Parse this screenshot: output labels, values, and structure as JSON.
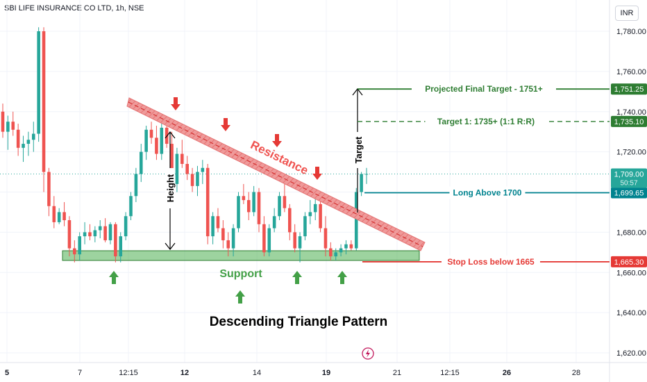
{
  "header": {
    "ticker_title": "SBI LIFE INSURANCE CO LTD, 1h, NSE",
    "currency": "INR"
  },
  "colors": {
    "up": "#26a69a",
    "down": "#ef5350",
    "support": "#4caf50",
    "resistance": "#e57373",
    "target": "#2e7d32",
    "long": "#00838f",
    "stop": "#e53935",
    "grid": "#f0f3fa",
    "axis_text": "#131722"
  },
  "chart_data": {
    "type": "candlestick",
    "y_axis": {
      "ylim": [
        1612,
        1787
      ],
      "ticks": [
        "1,620.00",
        "1,640.00",
        "1,660.00",
        "1,680.00",
        "1,700.00",
        "1,720.00",
        "1,740.00",
        "1,760.00",
        "1,780.00"
      ],
      "tick_values": [
        1620,
        1640,
        1660,
        1680,
        1700,
        1720,
        1740,
        1760,
        1780
      ]
    },
    "x_axis": {
      "ticks": [
        "5",
        "7",
        "12:15",
        "12",
        "14",
        "19",
        "21",
        "12:15",
        "26",
        "28"
      ],
      "bold_ticks": [
        "5",
        "12",
        "19",
        "26"
      ]
    },
    "candles": [
      [
        1740,
        1744,
        1727,
        1730
      ],
      [
        1730,
        1738,
        1721,
        1735
      ],
      [
        1735,
        1740,
        1728,
        1731
      ],
      [
        1731,
        1734,
        1718,
        1722
      ],
      [
        1722,
        1728,
        1715,
        1724
      ],
      [
        1724,
        1730,
        1718,
        1726
      ],
      [
        1726,
        1735,
        1720,
        1729
      ],
      [
        1729,
        1782,
        1725,
        1780
      ],
      [
        1780,
        1782,
        1700,
        1710
      ],
      [
        1710,
        1712,
        1688,
        1693
      ],
      [
        1693,
        1698,
        1682,
        1685
      ],
      [
        1685,
        1692,
        1684,
        1690
      ],
      [
        1690,
        1695,
        1683,
        1686
      ],
      [
        1686,
        1688,
        1668,
        1672
      ],
      [
        1672,
        1676,
        1665,
        1669
      ],
      [
        1669,
        1680,
        1666,
        1678
      ],
      [
        1678,
        1685,
        1674,
        1680
      ],
      [
        1680,
        1684,
        1676,
        1678
      ],
      [
        1678,
        1683,
        1675,
        1681
      ],
      [
        1681,
        1686,
        1677,
        1683
      ],
      [
        1683,
        1687,
        1675,
        1676
      ],
      [
        1676,
        1685,
        1674,
        1684
      ],
      [
        1684,
        1685,
        1665,
        1668
      ],
      [
        1668,
        1680,
        1665,
        1678
      ],
      [
        1678,
        1690,
        1676,
        1688
      ],
      [
        1688,
        1700,
        1686,
        1698
      ],
      [
        1698,
        1712,
        1695,
        1709
      ],
      [
        1709,
        1724,
        1705,
        1720
      ],
      [
        1720,
        1733,
        1716,
        1731
      ],
      [
        1731,
        1735,
        1724,
        1727
      ],
      [
        1727,
        1733,
        1716,
        1719
      ],
      [
        1719,
        1735,
        1716,
        1732
      ],
      [
        1732,
        1736,
        1722,
        1724
      ],
      [
        1724,
        1730,
        1700,
        1704
      ],
      [
        1704,
        1722,
        1700,
        1719
      ],
      [
        1719,
        1726,
        1712,
        1714
      ],
      [
        1714,
        1718,
        1706,
        1709
      ],
      [
        1709,
        1712,
        1700,
        1703
      ],
      [
        1703,
        1713,
        1698,
        1710
      ],
      [
        1710,
        1716,
        1704,
        1712
      ],
      [
        1712,
        1714,
        1674,
        1678
      ],
      [
        1678,
        1690,
        1674,
        1688
      ],
      [
        1688,
        1692,
        1680,
        1682
      ],
      [
        1682,
        1686,
        1672,
        1676
      ],
      [
        1676,
        1680,
        1668,
        1672
      ],
      [
        1672,
        1684,
        1668,
        1682
      ],
      [
        1682,
        1700,
        1680,
        1698
      ],
      [
        1698,
        1704,
        1694,
        1696
      ],
      [
        1696,
        1700,
        1686,
        1690
      ],
      [
        1690,
        1703,
        1688,
        1700
      ],
      [
        1700,
        1702,
        1680,
        1684
      ],
      [
        1684,
        1688,
        1668,
        1670
      ],
      [
        1670,
        1684,
        1668,
        1682
      ],
      [
        1682,
        1692,
        1680,
        1688
      ],
      [
        1688,
        1700,
        1686,
        1698
      ],
      [
        1698,
        1704,
        1690,
        1692
      ],
      [
        1692,
        1694,
        1676,
        1680
      ],
      [
        1680,
        1684,
        1670,
        1672
      ],
      [
        1672,
        1680,
        1665,
        1678
      ],
      [
        1678,
        1690,
        1676,
        1688
      ],
      [
        1688,
        1696,
        1684,
        1690
      ],
      [
        1690,
        1698,
        1686,
        1694
      ],
      [
        1694,
        1696,
        1680,
        1682
      ],
      [
        1682,
        1688,
        1668,
        1672
      ],
      [
        1672,
        1675,
        1666,
        1668
      ],
      [
        1668,
        1672,
        1666,
        1670
      ],
      [
        1670,
        1674,
        1668,
        1672
      ],
      [
        1672,
        1676,
        1669,
        1674
      ],
      [
        1674,
        1676,
        1671,
        1672
      ],
      [
        1672,
        1702,
        1671,
        1700
      ],
      [
        1700,
        1710,
        1698,
        1709
      ],
      [
        1709,
        1712,
        1704,
        1709
      ]
    ],
    "levels": [
      {
        "name": "Projected Final Target - 1751+",
        "value": 1751.25,
        "price_label": "1,751.25",
        "style": "solid"
      },
      {
        "name": "Target 1: 1735+ (1:1 R:R)",
        "value": 1735.1,
        "price_label": "1,735.10",
        "style": "dashed"
      },
      {
        "name": "Long Above 1700",
        "value": 1699.65,
        "price_label": "1,699.65",
        "style": "solid"
      },
      {
        "name": "Stop Loss below 1665",
        "value": 1665.3,
        "price_label": "1,665.30",
        "style": "solid"
      }
    ],
    "current_price": {
      "value": 1709.0,
      "label": "1,709.00",
      "countdown": "50:57"
    },
    "annotations": {
      "resistance_label": "Resistance",
      "support_label": "Support",
      "height_label": "Height",
      "target_label": "Target",
      "pattern_title": "Descending Triangle Pattern"
    }
  }
}
